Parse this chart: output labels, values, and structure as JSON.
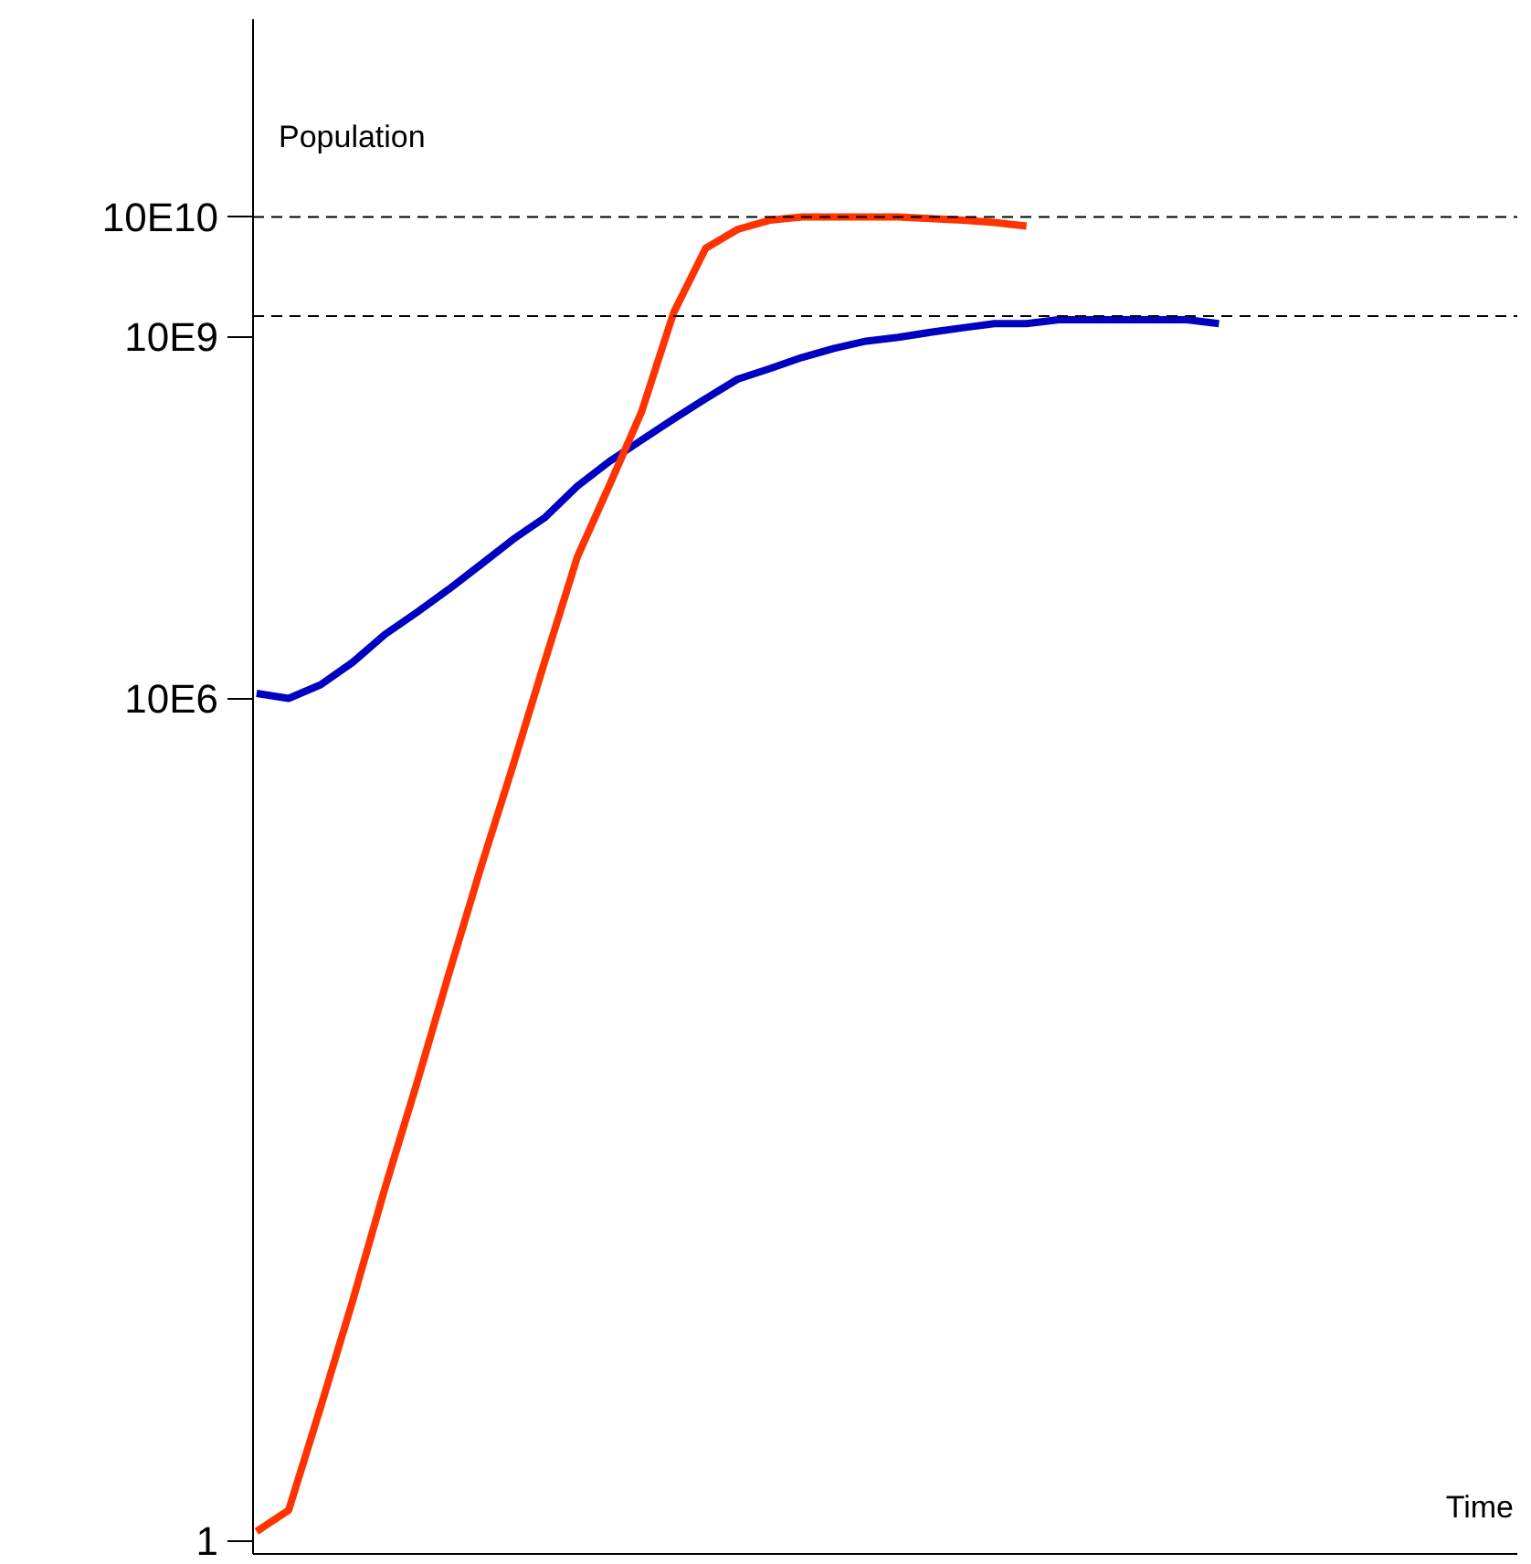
{
  "chart_data": {
    "type": "line",
    "annotations": [
      "Time"
    ],
    "ylabel": "Population",
    "categories": [
      null,
      null,
      null,
      null,
      null,
      null,
      null,
      null,
      null,
      null,
      null,
      null,
      null,
      null,
      null,
      null,
      null,
      null,
      null,
      null,
      null,
      null,
      null,
      null,
      null,
      null,
      null,
      null,
      null,
      null,
      null
    ],
    "series": [
      {
        "color": "#0000c0",
        "values": [
          11000000.0,
          10000000.0,
          13000000.0,
          20000000.0,
          34000000.0,
          52000000.0,
          81000000.0,
          130000000.0,
          210000000.0,
          320000000.0,
          580000000.0,
          930000000.0,
          1400000000.0,
          2100000000.0,
          3100000000.0,
          4500000000.0,
          5500000000.0,
          6800000000.0,
          8100000000.0,
          9300000000.0,
          10000000000.0,
          11000000000.0,
          12000000000.0,
          13000000000.0,
          13000000000.0,
          14000000000.0,
          14000000000.0,
          14000000000.0,
          14000000000.0,
          14000000000.0,
          13000000000.0
        ]
      },
      {
        "color": "#ff3300",
        "values": [
          1.2,
          1.8,
          13,
          100,
          850,
          6400,
          52000,
          400000.0,
          2800000.0,
          21000000.0,
          150000000.0,
          590000000.0,
          2400000000.0,
          16000000000.0,
          55000000000.0,
          79000000000.0,
          94000000000.0,
          100000000000.0,
          100000000000.0,
          100000000000.0,
          100000000000.0,
          97000000000.0,
          94000000000.0,
          90000000000.0,
          84000000000.0,
          null,
          null,
          null,
          null,
          null,
          null
        ]
      }
    ],
    "log": true,
    "ylim": [
      0.78,
      4400000000000.0
    ],
    "yticks": [
      1,
      {
        "value": 10000000,
        "label": "10E6"
      },
      {
        "value": 10000000000,
        "label": "10E9"
      },
      {
        "value": 100000000000,
        "label": "10E10"
      }
    ],
    "ref_lines": [
      {
        "axis": "y",
        "value": 100000000000.0,
        "color": "#000000",
        "line_style": "dashed"
      },
      {
        "axis": "y",
        "value": 15000000000.0,
        "color": "#000000",
        "line_style": "dashed"
      }
    ],
    "grid": false,
    "tick_labels": "y",
    "marker": "none",
    "line_style": "solid"
  }
}
